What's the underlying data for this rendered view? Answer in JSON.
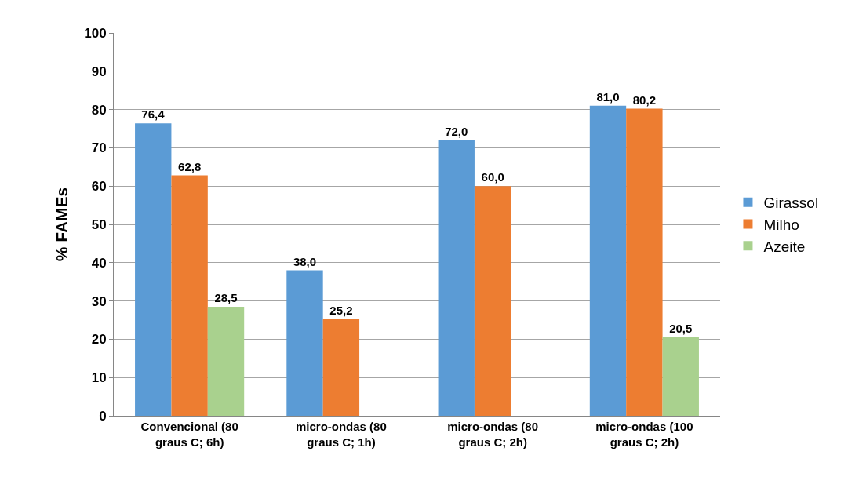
{
  "chart_data": {
    "type": "bar",
    "ylabel": "% FAMEs",
    "categories": [
      "Convencional (80 graus C; 6h)",
      "micro-ondas (80 graus C; 1h)",
      "micro-ondas (80 graus C; 2h)",
      "micro-ondas (100 graus C; 2h)"
    ],
    "series": [
      {
        "name": "Girassol",
        "color": "#5b9bd5",
        "values": [
          76.4,
          38.0,
          72.0,
          81.0
        ],
        "value_labels": [
          "76,4",
          "38,0",
          "72,0",
          "81,0"
        ]
      },
      {
        "name": "Milho",
        "color": "#ed7d31",
        "values": [
          62.8,
          25.2,
          60.0,
          80.2
        ],
        "value_labels": [
          "62,8",
          "25,2",
          "60,0",
          "80,2"
        ]
      },
      {
        "name": "Azeite",
        "color": "#a9d18e",
        "values": [
          28.5,
          null,
          null,
          20.5
        ],
        "value_labels": [
          "28,5",
          null,
          null,
          "20,5"
        ]
      }
    ],
    "ylim": [
      0,
      100
    ],
    "yticks": [
      0,
      10,
      20,
      30,
      40,
      50,
      60,
      70,
      80,
      90,
      100
    ],
    "grid": "y",
    "legend": "right"
  }
}
